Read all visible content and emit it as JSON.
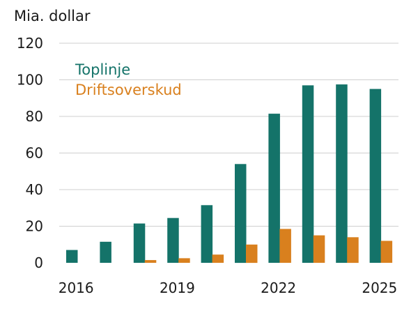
{
  "colors": {
    "toplinje": "#147369",
    "driftsoverskud": "#d9801e",
    "grid": "#cfcfcf",
    "text": "#1a1a1a"
  },
  "chart_data": {
    "type": "bar",
    "ylabel": "Mia. dollar",
    "ylim": [
      0,
      120
    ],
    "y_ticks": [
      "0",
      "20",
      "40",
      "60",
      "80",
      "100",
      "120"
    ],
    "categories": [
      "2016",
      "2017",
      "2018",
      "2019",
      "2020",
      "2021",
      "2022",
      "2023",
      "2024",
      "2025"
    ],
    "x_tick_labels": [
      "2016",
      "",
      "",
      "2019",
      "",
      "",
      "2022",
      "",
      "",
      "2025"
    ],
    "grid": true,
    "legend_placement": "top-left",
    "series": [
      {
        "name": "Toplinje",
        "color": "#147369",
        "values": [
          7,
          11.5,
          21.5,
          24.5,
          31.5,
          54,
          81.5,
          97,
          97.5,
          95
        ]
      },
      {
        "name": "Driftsoverskud",
        "color": "#d9801e",
        "values": [
          null,
          null,
          1.5,
          2.5,
          4.5,
          10,
          18.5,
          15,
          14,
          12
        ]
      }
    ]
  }
}
